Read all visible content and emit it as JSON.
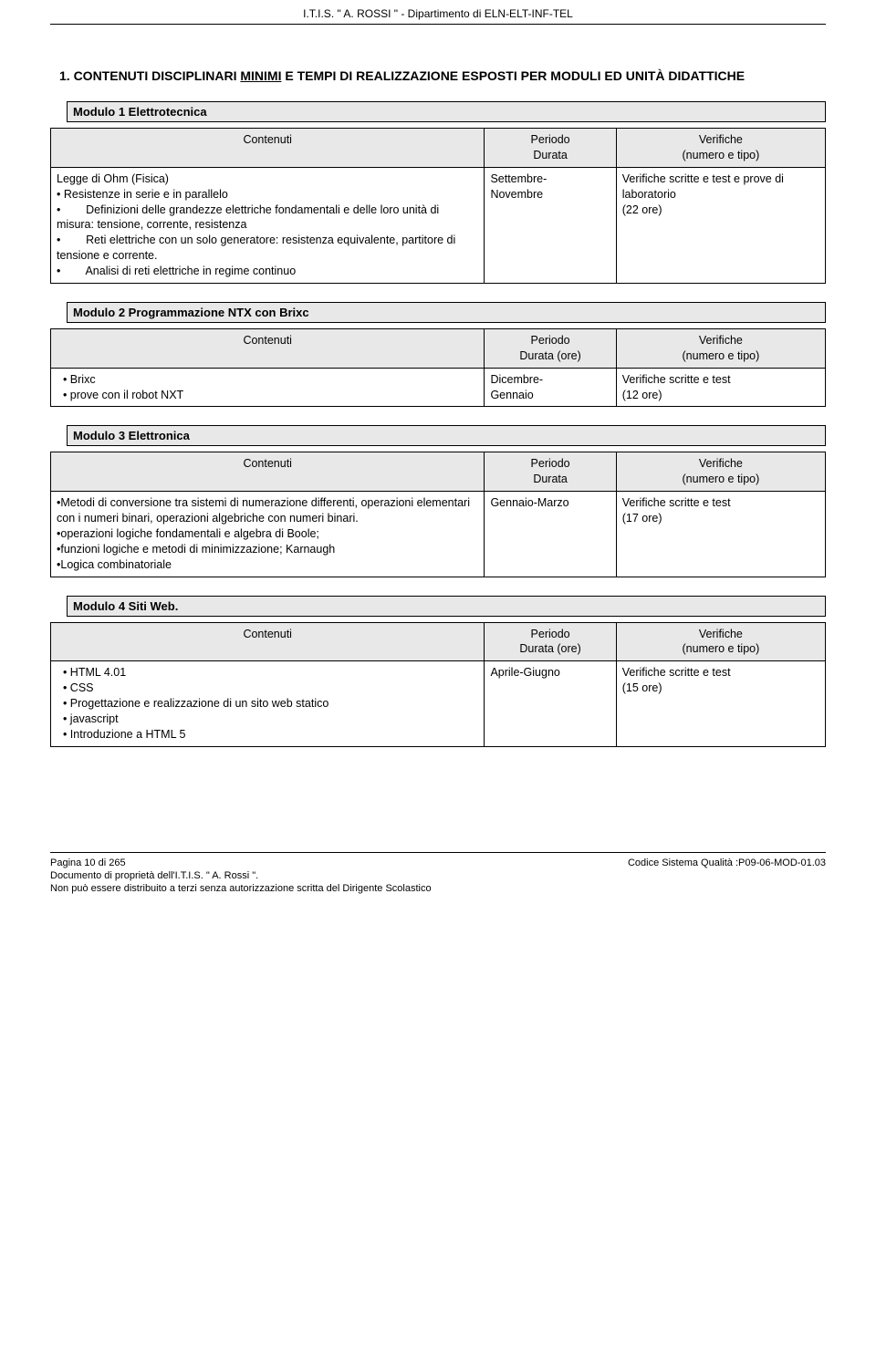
{
  "header": "I.T.I.S. \" A. ROSSI \"   -  Dipartimento di ELN-ELT-INF-TEL",
  "section_title_pre": "1. CONTENUTI DISCIPLINARI ",
  "section_title_under": "MINIMI",
  "section_title_post": " E TEMPI DI REALIZZAZIONE ESPOSTI PER MODULI ED UNITÀ DIDATTICHE",
  "col_contenuti": "Contenuti",
  "col_periodo_durata": "Periodo\nDurata",
  "col_periodo_durata_ore": "Periodo\nDurata (ore)",
  "col_verifiche": "Verifiche\n(numero e tipo)",
  "modules": [
    {
      "title": "Modulo 1 Elettrotecnica",
      "periodo_header": "Periodo\nDurata",
      "content_lines": [
        "Legge di Ohm (Fisica)",
        "• Resistenze in serie e in parallelo",
        "•        Definizioni delle grandezze elettriche fondamentali e delle loro unità di misura: tensione, corrente, resistenza",
        "•        Reti elettriche con un solo generatore: resistenza equivalente, partitore di tensione e corrente.",
        "•        Analisi di reti elettriche in regime continuo"
      ],
      "periodo": "Settembre-\nNovembre",
      "verifiche": "Verifiche scritte e test e prove di laboratorio\n(22 ore)"
    },
    {
      "title": "Modulo 2 Programmazione NTX con Brixc",
      "periodo_header": "Periodo\nDurata (ore)",
      "content_lines": [
        "  • Brixc",
        "  • prove con il robot NXT"
      ],
      "periodo": "Dicembre-\nGennaio",
      "verifiche": "Verifiche scritte e test\n(12 ore)"
    },
    {
      "title": "Modulo 3 Elettronica",
      "periodo_header": "Periodo\nDurata",
      "content_lines": [
        "•Metodi di conversione tra sistemi di numerazione differenti, operazioni elementari con i numeri binari, operazioni algebriche con numeri binari.",
        "•operazioni logiche fondamentali e algebra di Boole;",
        "•funzioni logiche e metodi di minimizzazione; Karnaugh",
        "•Logica combinatoriale"
      ],
      "periodo": "Gennaio-Marzo",
      "verifiche": "Verifiche scritte e test\n(17 ore)"
    },
    {
      "title": "Modulo 4 Siti Web.",
      "periodo_header": "Periodo\nDurata (ore)",
      "content_lines": [
        "  • HTML 4.01",
        "  • CSS",
        "  • Progettazione e realizzazione di un sito web statico",
        "  • javascript",
        "  • Introduzione a HTML 5"
      ],
      "periodo": "Aprile-Giugno",
      "verifiche": "Verifiche scritte e test\n(15 ore)"
    }
  ],
  "footer": {
    "left_line1": "Pagina 10 di 265",
    "left_line2": "Documento di proprietà dell'I.T.I.S. \" A. Rossi \".",
    "left_line3": "Non può essere distribuito a terzi senza autorizzazione scritta del Dirigente Scolastico",
    "right": "Codice Sistema Qualità :P09-06-MOD-01.03"
  }
}
